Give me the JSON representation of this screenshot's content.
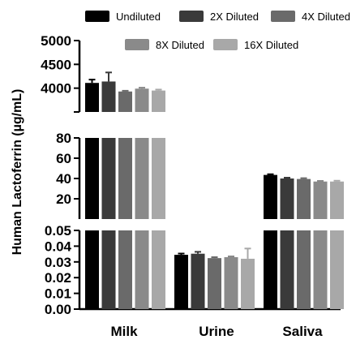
{
  "chart_data": {
    "type": "bar",
    "ylabel": "Human Lactoferrin (µg/mL)",
    "categories": [
      "Milk",
      "Urine",
      "Saliva"
    ],
    "series": [
      {
        "name": "Undiluted",
        "color": "#000000",
        "values": [
          4110,
          0.0345,
          43.5
        ],
        "errors": [
          70,
          0.0008,
          0.7
        ]
      },
      {
        "name": "2X Diluted",
        "color": "#3a3a3a",
        "values": [
          4140,
          0.0352,
          40.0
        ],
        "errors": [
          190,
          0.0012,
          0.8
        ]
      },
      {
        "name": "4X Diluted",
        "color": "#6a6a6a",
        "values": [
          3930,
          0.0324,
          39.5
        ],
        "errors": [
          15,
          0.0006,
          0.8
        ]
      },
      {
        "name": "8X Diluted",
        "color": "#8a8a8a",
        "values": [
          3990,
          0.033,
          37.0
        ],
        "errors": [
          20,
          0.0005,
          0.6
        ]
      },
      {
        "name": "16X Diluted",
        "color": "#a8a8a8",
        "values": [
          3950,
          0.032,
          37.0
        ],
        "errors": [
          20,
          0.0065,
          0.8
        ]
      }
    ],
    "axis_segments": [
      {
        "ylim": [
          3500,
          5000
        ],
        "ticks": [
          3500,
          4000,
          4500,
          5000
        ],
        "tick_labels": [
          "",
          "4000",
          "4500",
          "5000"
        ]
      },
      {
        "ylim": [
          0,
          80
        ],
        "ticks": [
          20,
          40,
          60,
          80
        ],
        "tick_labels": [
          "20",
          "40",
          "60",
          "80"
        ]
      },
      {
        "ylim": [
          0,
          0.05
        ],
        "ticks": [
          0,
          0.01,
          0.02,
          0.03,
          0.04,
          0.05
        ],
        "tick_labels": [
          "0.00",
          "0.01",
          "0.02",
          "0.03",
          "0.04",
          "0.05"
        ]
      }
    ],
    "legend_position": "top",
    "grid": false
  }
}
